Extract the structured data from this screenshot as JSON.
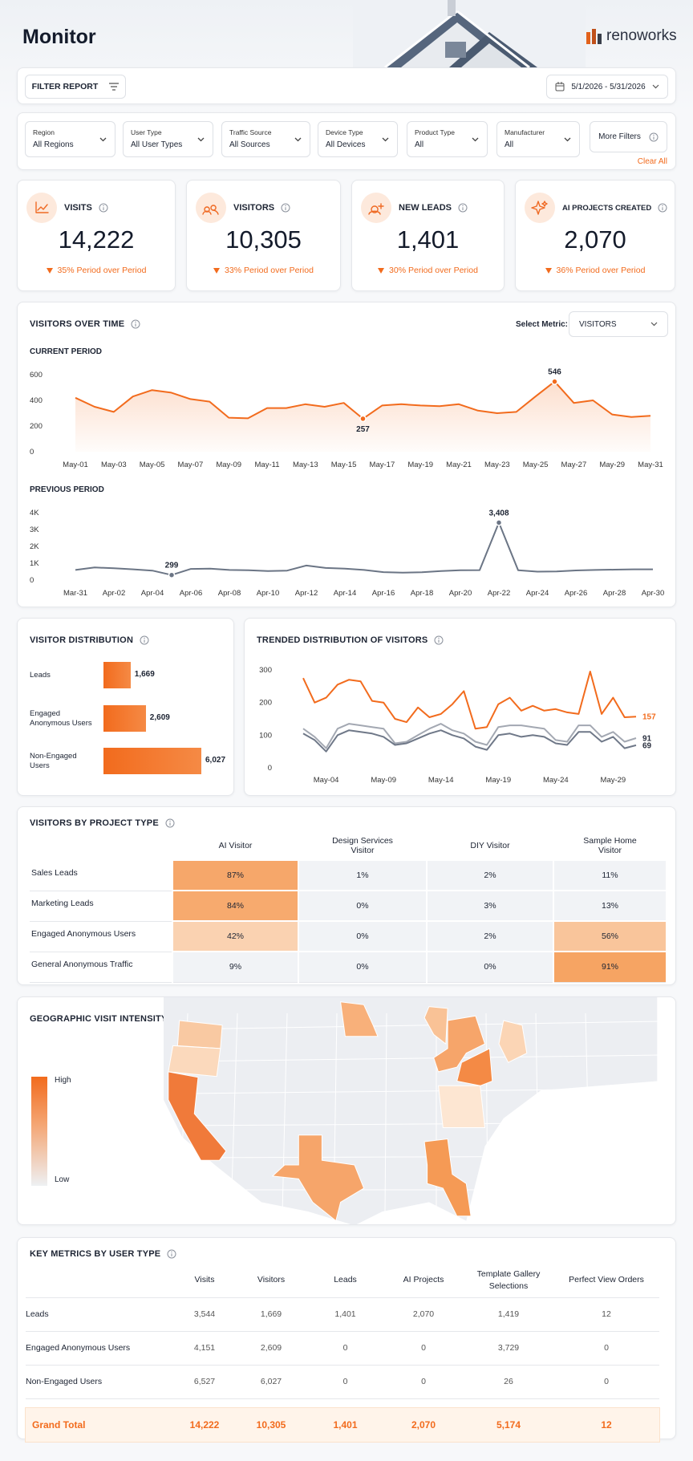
{
  "header": {
    "title": "Monitor",
    "brand": "renoworks"
  },
  "toolbar": {
    "filter_button": "FILTER REPORT",
    "date_range": "5/1/2026 - 5/31/2026"
  },
  "filters": [
    {
      "label": "Region",
      "value": "All Regions"
    },
    {
      "label": "User Type",
      "value": "All User Types"
    },
    {
      "label": "Traffic Source",
      "value": "All Sources"
    },
    {
      "label": "Device Type",
      "value": "All Devices"
    },
    {
      "label": "Product Type",
      "value": "All"
    },
    {
      "label": "Manufacturer",
      "value": "All"
    }
  ],
  "more_filters": "More Filters",
  "clear_all": "Clear All",
  "kpis": [
    {
      "label": "VISITS",
      "value": "14,222",
      "change": "35% Period over Period"
    },
    {
      "label": "VISITORS",
      "value": "10,305",
      "change": "33% Period over Period"
    },
    {
      "label": "NEW LEADS",
      "value": "1,401",
      "change": "30% Period over Period"
    },
    {
      "label": "AI PROJECTS CREATED",
      "value": "2,070",
      "change": "36% Period over Period"
    }
  ],
  "visitors_over_time": {
    "title": "VISITORS OVER TIME",
    "select_label": "Select Metric:",
    "select_value": "VISITORS"
  },
  "chart_data": [
    {
      "type": "line",
      "title": "CURRENT PERIOD",
      "color": "#f26b1d",
      "area": true,
      "categories": [
        "May-01",
        null,
        "May-03",
        null,
        "May-05",
        null,
        "May-07",
        null,
        "May-09",
        null,
        "May-11",
        null,
        "May-13",
        null,
        "May-15",
        null,
        "May-17",
        null,
        "May-19",
        null,
        "May-21",
        null,
        "May-23",
        null,
        "May-25",
        null,
        "May-27",
        null,
        "May-29",
        null,
        "May-31"
      ],
      "values": [
        420,
        350,
        310,
        430,
        480,
        460,
        410,
        390,
        265,
        260,
        340,
        340,
        370,
        350,
        380,
        257,
        360,
        370,
        360,
        355,
        370,
        320,
        300,
        310,
        430,
        546,
        380,
        400,
        290,
        270,
        280
      ],
      "value_labels": [
        null,
        null,
        null,
        null,
        null,
        null,
        null,
        null,
        null,
        null,
        null,
        null,
        null,
        null,
        null,
        "257",
        null,
        null,
        null,
        null,
        null,
        null,
        null,
        null,
        null,
        "546",
        null,
        null,
        null,
        null,
        null
      ],
      "ylim": [
        0,
        600
      ],
      "yticks": [
        0,
        200,
        400,
        600
      ]
    },
    {
      "type": "line",
      "title": "PREVIOUS PERIOD",
      "color": "#6b7585",
      "area": false,
      "categories": [
        "Mar-31",
        null,
        "Apr-02",
        null,
        "Apr-04",
        null,
        "Apr-06",
        null,
        "Apr-08",
        null,
        "Apr-10",
        null,
        "Apr-12",
        null,
        "Apr-14",
        null,
        "Apr-16",
        null,
        "Apr-18",
        null,
        "Apr-20",
        null,
        "Apr-22",
        null,
        "Apr-24",
        null,
        "Apr-26",
        null,
        "Apr-28",
        null,
        "Apr-30"
      ],
      "values": [
        600,
        750,
        700,
        640,
        560,
        299,
        660,
        680,
        600,
        580,
        540,
        560,
        860,
        720,
        680,
        600,
        470,
        440,
        460,
        540,
        580,
        590,
        3408,
        580,
        500,
        510,
        570,
        600,
        620,
        640,
        640
      ],
      "value_labels": [
        null,
        null,
        null,
        null,
        null,
        "299",
        null,
        null,
        null,
        null,
        null,
        null,
        null,
        null,
        null,
        null,
        null,
        null,
        null,
        null,
        null,
        null,
        "3,408",
        null,
        null,
        null,
        null,
        null,
        null,
        null,
        null
      ],
      "ylim": [
        0,
        4000
      ],
      "yticks": [
        0,
        {
          "value": 1000,
          "label": "1K"
        },
        {
          "value": 2000,
          "label": "2K"
        },
        {
          "value": 3000,
          "label": "3K"
        },
        {
          "value": 4000,
          "label": "4K"
        }
      ]
    },
    {
      "type": "hbar",
      "title": "VISITOR DISTRIBUTION",
      "color": "#f26b1d",
      "categories": [
        "Leads",
        "Engaged Anonymous Users",
        "Non-Engaged Users"
      ],
      "values": [
        1669,
        2609,
        6027
      ],
      "value_labels": [
        "1,669",
        "2,609",
        "6,027"
      ]
    },
    {
      "type": "multiline",
      "title": "TRENDED DISTRIBUTION OF VISITORS",
      "end_labels": true,
      "categories": [
        null,
        null,
        "May-04",
        null,
        null,
        null,
        null,
        "May-09",
        null,
        null,
        null,
        null,
        "May-14",
        null,
        null,
        null,
        null,
        "May-19",
        null,
        null,
        null,
        null,
        "May-24",
        null,
        null,
        null,
        null,
        "May-29",
        null,
        null
      ],
      "ylim": [
        0,
        300
      ],
      "yticks": [
        0,
        100,
        200,
        300
      ],
      "series": [
        {
          "color": "#f26b1d",
          "values": [
            275,
            200,
            215,
            255,
            270,
            265,
            205,
            200,
            150,
            140,
            185,
            155,
            165,
            195,
            235,
            120,
            125,
            195,
            215,
            175,
            190,
            175,
            180,
            170,
            165,
            295,
            165,
            215,
            155,
            157
          ]
        },
        {
          "color": "#a3a8b2",
          "values": [
            120,
            95,
            60,
            120,
            135,
            130,
            125,
            120,
            75,
            80,
            100,
            120,
            135,
            115,
            105,
            80,
            70,
            125,
            130,
            130,
            125,
            120,
            85,
            80,
            130,
            130,
            95,
            110,
            80,
            91
          ]
        },
        {
          "color": "#6f7888",
          "values": [
            105,
            85,
            50,
            100,
            115,
            110,
            105,
            95,
            70,
            75,
            90,
            105,
            115,
            100,
            90,
            65,
            55,
            100,
            105,
            95,
            100,
            95,
            75,
            70,
            110,
            110,
            80,
            95,
            60,
            69
          ]
        }
      ]
    }
  ],
  "project_table": {
    "title": "VISITORS BY PROJECT TYPE",
    "columns": [
      "AI Visitor",
      "Design Services Visitor",
      "DIY Visitor",
      "Sample Home Visitor"
    ],
    "rows": [
      {
        "label": "Sales Leads",
        "cells": [
          "87%",
          "1%",
          "2%",
          "11%"
        ]
      },
      {
        "label": "Marketing Leads",
        "cells": [
          "84%",
          "0%",
          "3%",
          "13%"
        ]
      },
      {
        "label": "Engaged Anonymous Users",
        "cells": [
          "42%",
          "0%",
          "2%",
          "56%"
        ]
      },
      {
        "label": "General Anonymous Traffic",
        "cells": [
          "9%",
          "0%",
          "0%",
          "91%"
        ]
      }
    ]
  },
  "geo": {
    "title": "GEOGRAPHIC VISIT INTENSITY",
    "legend_high": "High",
    "legend_low": "Low"
  },
  "metrics_table": {
    "title": "KEY METRICS BY USER TYPE",
    "columns": [
      "Visits",
      "Visitors",
      "Leads",
      "AI Projects",
      "Template Gallery Selections",
      "Perfect View Orders"
    ],
    "rows": [
      {
        "label": "Leads",
        "cells": [
          "3,544",
          "1,669",
          "1,401",
          "2,070",
          "1,419",
          "12"
        ]
      },
      {
        "label": "Engaged Anonymous Users",
        "cells": [
          "4,151",
          "2,609",
          "0",
          "0",
          "3,729",
          "0"
        ]
      },
      {
        "label": "Non-Engaged Users",
        "cells": [
          "6,527",
          "6,027",
          "0",
          "0",
          "26",
          "0"
        ]
      }
    ],
    "total": {
      "label": "Grand Total",
      "cells": [
        "14,222",
        "10,305",
        "1,401",
        "2,070",
        "5,174",
        "12"
      ]
    }
  }
}
